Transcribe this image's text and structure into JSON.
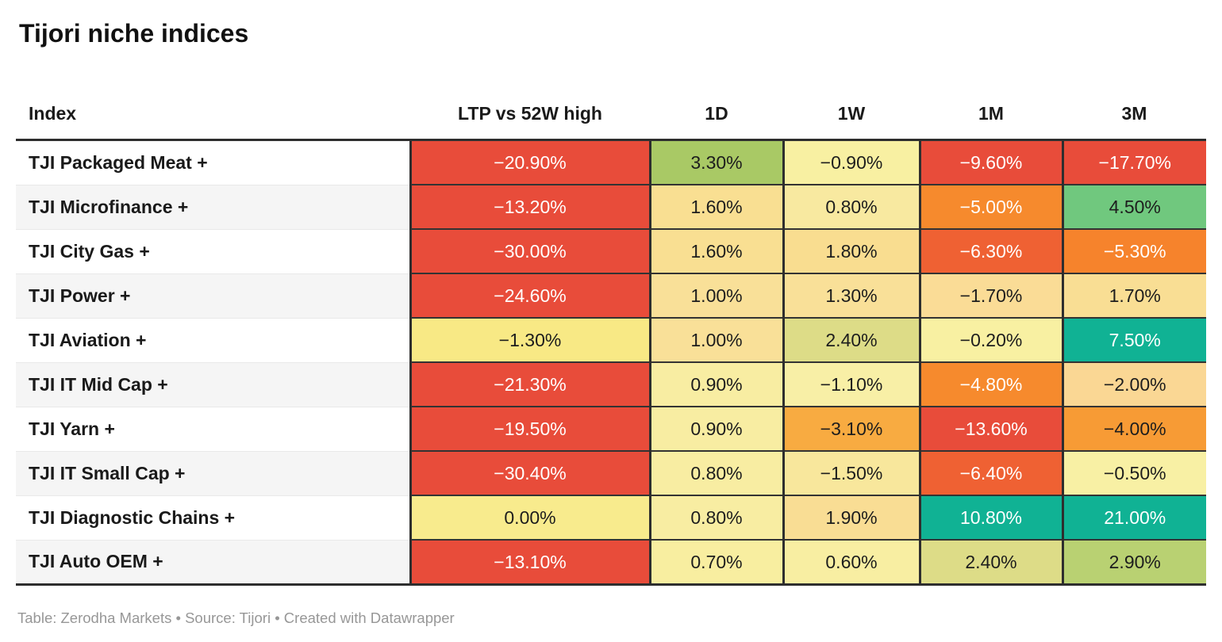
{
  "title": "Tijori niche indices",
  "columns": [
    "Index",
    "LTP vs 52W high",
    "1D",
    "1W",
    "1M",
    "3M"
  ],
  "footer": "Table: Zerodha Markets • Source: Tijori • Created with Datawrapper",
  "rows": [
    {
      "name": "TJI Packaged Meat +",
      "cells": [
        {
          "v": "−20.90%",
          "bg": "#e84c3a",
          "fg": "#ffffff"
        },
        {
          "v": "3.30%",
          "bg": "#a9c965",
          "fg": "#1d1d1d"
        },
        {
          "v": "−0.90%",
          "bg": "#f8f0a2",
          "fg": "#1d1d1d"
        },
        {
          "v": "−9.60%",
          "bg": "#e84c3a",
          "fg": "#ffffff"
        },
        {
          "v": "−17.70%",
          "bg": "#e84c3a",
          "fg": "#ffffff"
        }
      ]
    },
    {
      "name": "TJI Microfinance +",
      "cells": [
        {
          "v": "−13.20%",
          "bg": "#e84c3a",
          "fg": "#ffffff"
        },
        {
          "v": "1.60%",
          "bg": "#f9df92",
          "fg": "#1d1d1d"
        },
        {
          "v": "0.80%",
          "bg": "#f8e9a0",
          "fg": "#1d1d1d"
        },
        {
          "v": "−5.00%",
          "bg": "#f68a2d",
          "fg": "#ffffff"
        },
        {
          "v": "4.50%",
          "bg": "#70c87e",
          "fg": "#1d1d1d"
        }
      ]
    },
    {
      "name": "TJI City Gas +",
      "cells": [
        {
          "v": "−30.00%",
          "bg": "#e84c3a",
          "fg": "#ffffff"
        },
        {
          "v": "1.60%",
          "bg": "#f9df92",
          "fg": "#1d1d1d"
        },
        {
          "v": "1.80%",
          "bg": "#f9dd90",
          "fg": "#1d1d1d"
        },
        {
          "v": "−6.30%",
          "bg": "#ef6133",
          "fg": "#ffffff"
        },
        {
          "v": "−5.30%",
          "bg": "#f6832c",
          "fg": "#ffffff"
        }
      ]
    },
    {
      "name": "TJI Power +",
      "cells": [
        {
          "v": "−24.60%",
          "bg": "#e84c3a",
          "fg": "#ffffff"
        },
        {
          "v": "1.00%",
          "bg": "#f9e098",
          "fg": "#1d1d1d"
        },
        {
          "v": "1.30%",
          "bg": "#f9e098",
          "fg": "#1d1d1d"
        },
        {
          "v": "−1.70%",
          "bg": "#fadc96",
          "fg": "#1d1d1d"
        },
        {
          "v": "1.70%",
          "bg": "#f9de94",
          "fg": "#1d1d1d"
        }
      ]
    },
    {
      "name": "TJI Aviation +",
      "cells": [
        {
          "v": "−1.30%",
          "bg": "#f8e985",
          "fg": "#1d1d1d"
        },
        {
          "v": "1.00%",
          "bg": "#f9e098",
          "fg": "#1d1d1d"
        },
        {
          "v": "2.40%",
          "bg": "#dddc87",
          "fg": "#1d1d1d"
        },
        {
          "v": "−0.20%",
          "bg": "#f8f0a2",
          "fg": "#1d1d1d"
        },
        {
          "v": "7.50%",
          "bg": "#10b294",
          "fg": "#ffffff"
        }
      ]
    },
    {
      "name": "TJI IT Mid Cap +",
      "cells": [
        {
          "v": "−21.30%",
          "bg": "#e84c3a",
          "fg": "#ffffff"
        },
        {
          "v": "0.90%",
          "bg": "#f8eda2",
          "fg": "#1d1d1d"
        },
        {
          "v": "−1.10%",
          "bg": "#f8efa6",
          "fg": "#1d1d1d"
        },
        {
          "v": "−4.80%",
          "bg": "#f68a2d",
          "fg": "#ffffff"
        },
        {
          "v": "−2.00%",
          "bg": "#fad794",
          "fg": "#1d1d1d"
        }
      ]
    },
    {
      "name": "TJI Yarn +",
      "cells": [
        {
          "v": "−19.50%",
          "bg": "#e84c3a",
          "fg": "#ffffff"
        },
        {
          "v": "0.90%",
          "bg": "#f8eda2",
          "fg": "#1d1d1d"
        },
        {
          "v": "−3.10%",
          "bg": "#f8ab41",
          "fg": "#1d1d1d"
        },
        {
          "v": "−13.60%",
          "bg": "#e84c3a",
          "fg": "#ffffff"
        },
        {
          "v": "−4.00%",
          "bg": "#f79b35",
          "fg": "#1d1d1d"
        }
      ]
    },
    {
      "name": "TJI IT Small Cap +",
      "cells": [
        {
          "v": "−30.40%",
          "bg": "#e84c3a",
          "fg": "#ffffff"
        },
        {
          "v": "0.80%",
          "bg": "#f8eda2",
          "fg": "#1d1d1d"
        },
        {
          "v": "−1.50%",
          "bg": "#f8e79c",
          "fg": "#1d1d1d"
        },
        {
          "v": "−6.40%",
          "bg": "#ef6133",
          "fg": "#ffffff"
        },
        {
          "v": "−0.50%",
          "bg": "#f8f0a4",
          "fg": "#1d1d1d"
        }
      ]
    },
    {
      "name": "TJI Diagnostic Chains +",
      "cells": [
        {
          "v": "0.00%",
          "bg": "#f8eb8d",
          "fg": "#1d1d1d"
        },
        {
          "v": "0.80%",
          "bg": "#f8eda2",
          "fg": "#1d1d1d"
        },
        {
          "v": "1.90%",
          "bg": "#f9dd94",
          "fg": "#1d1d1d"
        },
        {
          "v": "10.80%",
          "bg": "#10b294",
          "fg": "#ffffff"
        },
        {
          "v": "21.00%",
          "bg": "#10b294",
          "fg": "#ffffff"
        }
      ]
    },
    {
      "name": "TJI Auto OEM +",
      "cells": [
        {
          "v": "−13.10%",
          "bg": "#e84c3a",
          "fg": "#ffffff"
        },
        {
          "v": "0.70%",
          "bg": "#f8eea0",
          "fg": "#1d1d1d"
        },
        {
          "v": "0.60%",
          "bg": "#f8eea2",
          "fg": "#1d1d1d"
        },
        {
          "v": "2.40%",
          "bg": "#dddc87",
          "fg": "#1d1d1d"
        },
        {
          "v": "2.90%",
          "bg": "#b9d172",
          "fg": "#1d1d1d"
        }
      ]
    }
  ],
  "colors": {
    "strong_negative": "#e84c3a",
    "negative": "#f68a2d",
    "neutral": "#f8f0a2",
    "positive": "#a9c965",
    "strong_positive": "#10b294",
    "border_dark": "#2e2e2e",
    "zebra_row": "#f5f5f5",
    "footer_text": "#979797"
  },
  "chart_data": {
    "type": "table",
    "title": "Tijori niche indices",
    "columns": [
      "Index",
      "LTP vs 52W high",
      "1D",
      "1W",
      "1M",
      "3M"
    ],
    "units": "%",
    "color_scale": "diverging red-yellow-green heatmap on value cells",
    "rows": [
      [
        "TJI Packaged Meat +",
        -20.9,
        3.3,
        -0.9,
        -9.6,
        -17.7
      ],
      [
        "TJI Microfinance +",
        -13.2,
        1.6,
        0.8,
        -5.0,
        4.5
      ],
      [
        "TJI City Gas +",
        -30.0,
        1.6,
        1.8,
        -6.3,
        -5.3
      ],
      [
        "TJI Power +",
        -24.6,
        1.0,
        1.3,
        -1.7,
        1.7
      ],
      [
        "TJI Aviation +",
        -1.3,
        1.0,
        2.4,
        -0.2,
        7.5
      ],
      [
        "TJI IT Mid Cap +",
        -21.3,
        0.9,
        -1.1,
        -4.8,
        -2.0
      ],
      [
        "TJI Yarn +",
        -19.5,
        0.9,
        -3.1,
        -13.6,
        -4.0
      ],
      [
        "TJI IT Small Cap +",
        -30.4,
        0.8,
        -1.5,
        -6.4,
        -0.5
      ],
      [
        "TJI Diagnostic Chains +",
        0.0,
        0.8,
        1.9,
        10.8,
        21.0
      ],
      [
        "TJI Auto OEM +",
        -13.1,
        0.7,
        0.6,
        2.4,
        2.9
      ]
    ]
  }
}
